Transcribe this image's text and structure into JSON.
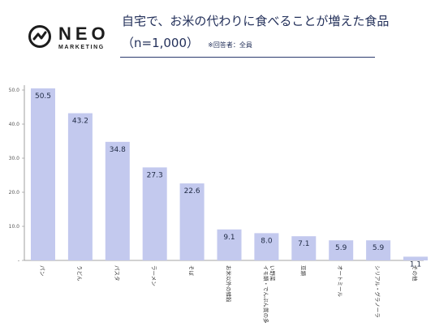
{
  "brand": {
    "name": "NEO",
    "tagline": "MARKETING",
    "mark_color": "#1c1c1c"
  },
  "header": {
    "title": "自宅で、お米の代わりに食べることが増えた食品",
    "subtitle": "（n=1,000）",
    "note": "※回答者：全員"
  },
  "chart_data": {
    "type": "bar",
    "categories": [
      "パン",
      "うどん",
      "パスタ",
      "ラーメン",
      "そば",
      "お米以外の雑穀",
      "イモ類・でんぷん質の多い野菜",
      "豆類",
      "オートミール",
      "シリアル・グラノーラ",
      "その他"
    ],
    "values": [
      50.5,
      43.2,
      34.8,
      27.3,
      22.6,
      9.1,
      8.0,
      7.1,
      5.9,
      5.9,
      1.1
    ],
    "value_labels": [
      "50.5",
      "43.2",
      "34.8",
      "27.3",
      "22.6",
      "9.1",
      "8.0",
      "7.1",
      "5.9",
      "5.9",
      "1.1"
    ],
    "ylim": [
      0,
      50
    ],
    "yticks": [
      "50.0",
      "40.0",
      "30.0",
      "20.0",
      "10.0",
      "-"
    ],
    "ytick_values": [
      50,
      40,
      30,
      20,
      10,
      0
    ],
    "grid": false,
    "bar_color": "#c3c9ee",
    "axis_color": "#888888"
  }
}
